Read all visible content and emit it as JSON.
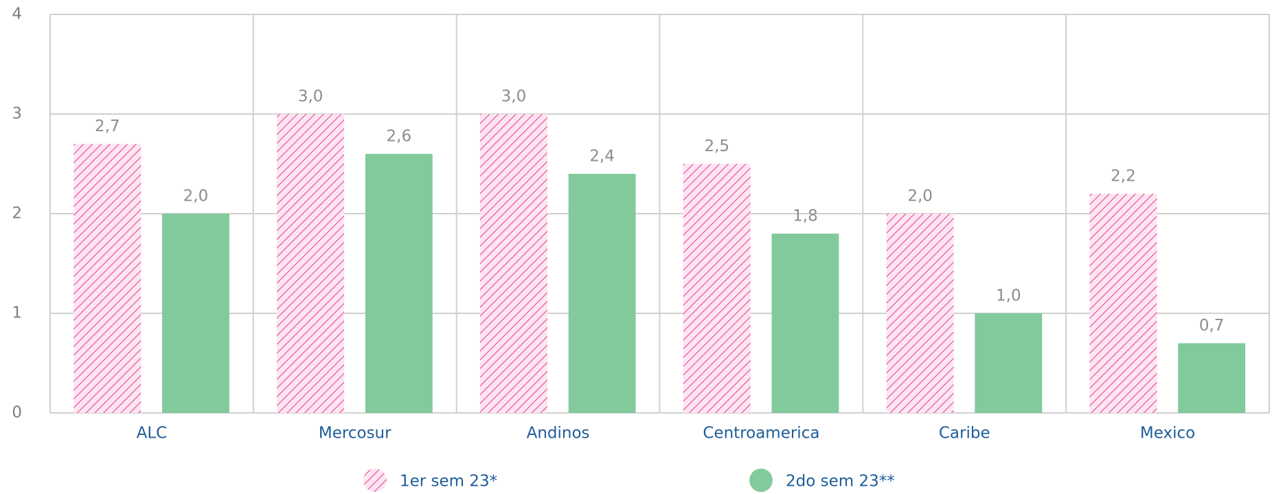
{
  "chart_data": {
    "type": "bar",
    "categories": [
      "ALC",
      "Mercosur",
      "Andinos",
      "Centroamerica",
      "Caribe",
      "Mexico"
    ],
    "series": [
      {
        "name": "1er sem 23*",
        "color": "#e8449a",
        "pattern": "diagonal-hatch",
        "values": [
          2.7,
          3.0,
          3.0,
          2.5,
          2.0,
          2.2
        ],
        "value_labels": [
          "2,7",
          "3,0",
          "3,0",
          "2,5",
          "2,0",
          "2,2"
        ]
      },
      {
        "name": "2do sem 23**",
        "color": "#82ca9c",
        "values": [
          2.0,
          2.6,
          2.4,
          1.8,
          1.0,
          0.7
        ],
        "value_labels": [
          "2,0",
          "2,6",
          "2,4",
          "1,8",
          "1,0",
          "0,7"
        ]
      }
    ],
    "ylim": [
      0,
      4
    ],
    "yticks": [
      0,
      1,
      2,
      3,
      4
    ],
    "grid": true
  }
}
